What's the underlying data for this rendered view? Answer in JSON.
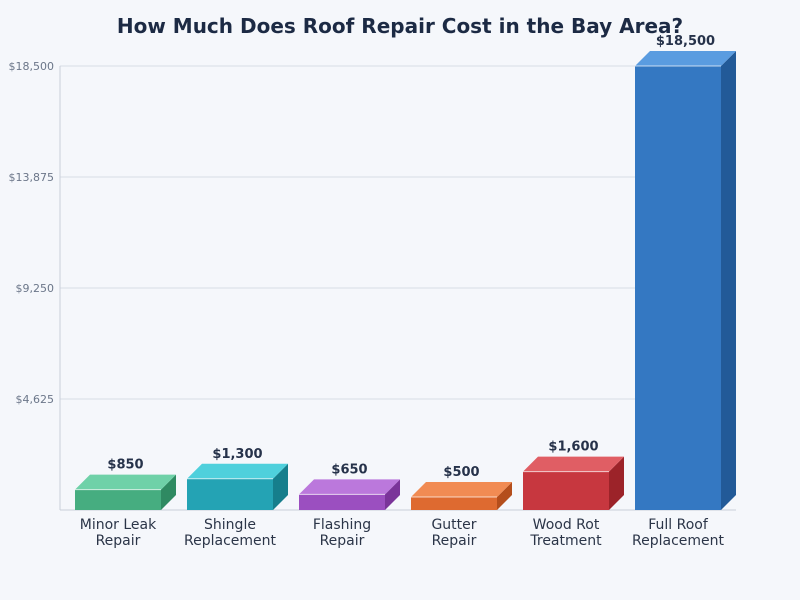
{
  "chart_data": {
    "type": "bar",
    "title": "How Much Does Roof Repair Cost in the Bay Area?",
    "xlabel": "",
    "ylabel": "",
    "ylim": [
      0,
      18500
    ],
    "yticks": [
      4625,
      9250,
      13875,
      18500
    ],
    "ytick_labels": [
      "$4,625",
      "$9,250",
      "$13,875",
      "$18,500"
    ],
    "grid": true,
    "categories": [
      [
        "Minor Leak",
        "Repair"
      ],
      [
        "Shingle",
        "Replacement"
      ],
      [
        "Flashing",
        "Repair"
      ],
      [
        "Gutter",
        "Repair"
      ],
      [
        "Wood Rot",
        "Treatment"
      ],
      [
        "Full Roof",
        "Replacement"
      ]
    ],
    "values": [
      850,
      1300,
      650,
      500,
      1600,
      18500
    ],
    "value_labels": [
      "$850",
      "$1,300",
      "$650",
      "$500",
      "$1,600",
      "$18,500"
    ],
    "colors": [
      {
        "front": "#46ad80",
        "top": "#6fd1a8",
        "side": "#2f8a62"
      },
      {
        "front": "#24a3b4",
        "top": "#4fd0dc",
        "side": "#167e8c"
      },
      {
        "front": "#9b4fc0",
        "top": "#bb78dc",
        "side": "#7a3499"
      },
      {
        "front": "#de6a30",
        "top": "#f18b53",
        "side": "#b44e1c"
      },
      {
        "front": "#c7373f",
        "top": "#e05e64",
        "side": "#9c2329"
      },
      {
        "front": "#3478c2",
        "top": "#5a9ce0",
        "side": "#225a98"
      }
    ]
  }
}
